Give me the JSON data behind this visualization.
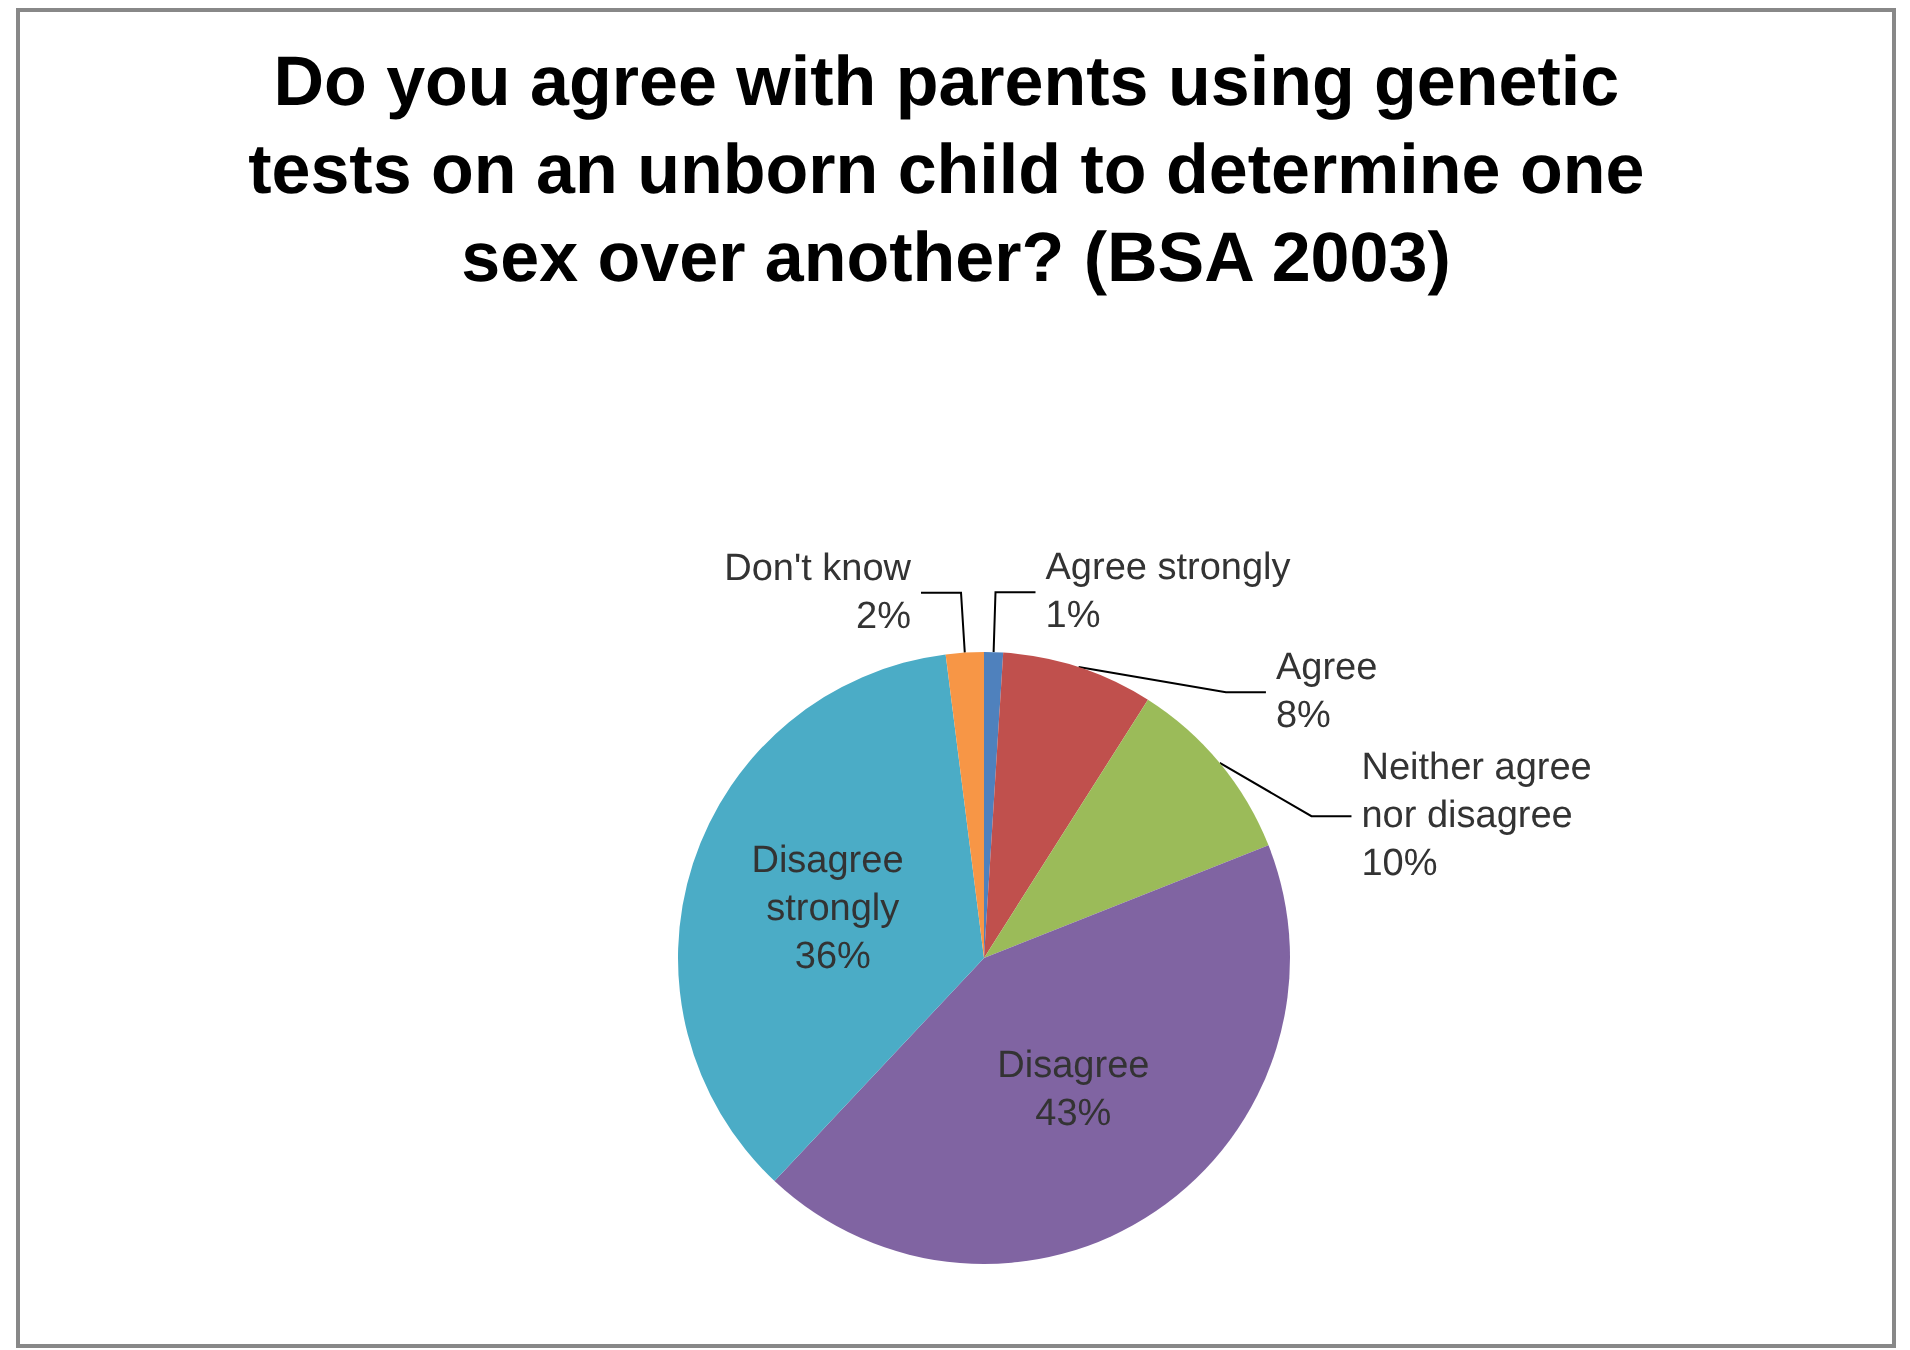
{
  "chart_data": {
    "type": "pie",
    "title": "Do you agree with parents using genetic tests on an unborn child to determine one sex over another? (BSA 2003)",
    "categories": [
      "Agree strongly",
      "Agree",
      "Neither agree nor disagree",
      "Disagree",
      "Disagree strongly",
      "Don't know"
    ],
    "values": [
      1,
      8,
      10,
      43,
      36,
      2
    ],
    "colors": [
      "#4f81bd",
      "#c0504d",
      "#9bbb59",
      "#8064a2",
      "#4bacc6",
      "#f79646"
    ],
    "value_labels": [
      "1%",
      "8%",
      "10%",
      "43%",
      "36%",
      "2%"
    ],
    "legend": false
  }
}
